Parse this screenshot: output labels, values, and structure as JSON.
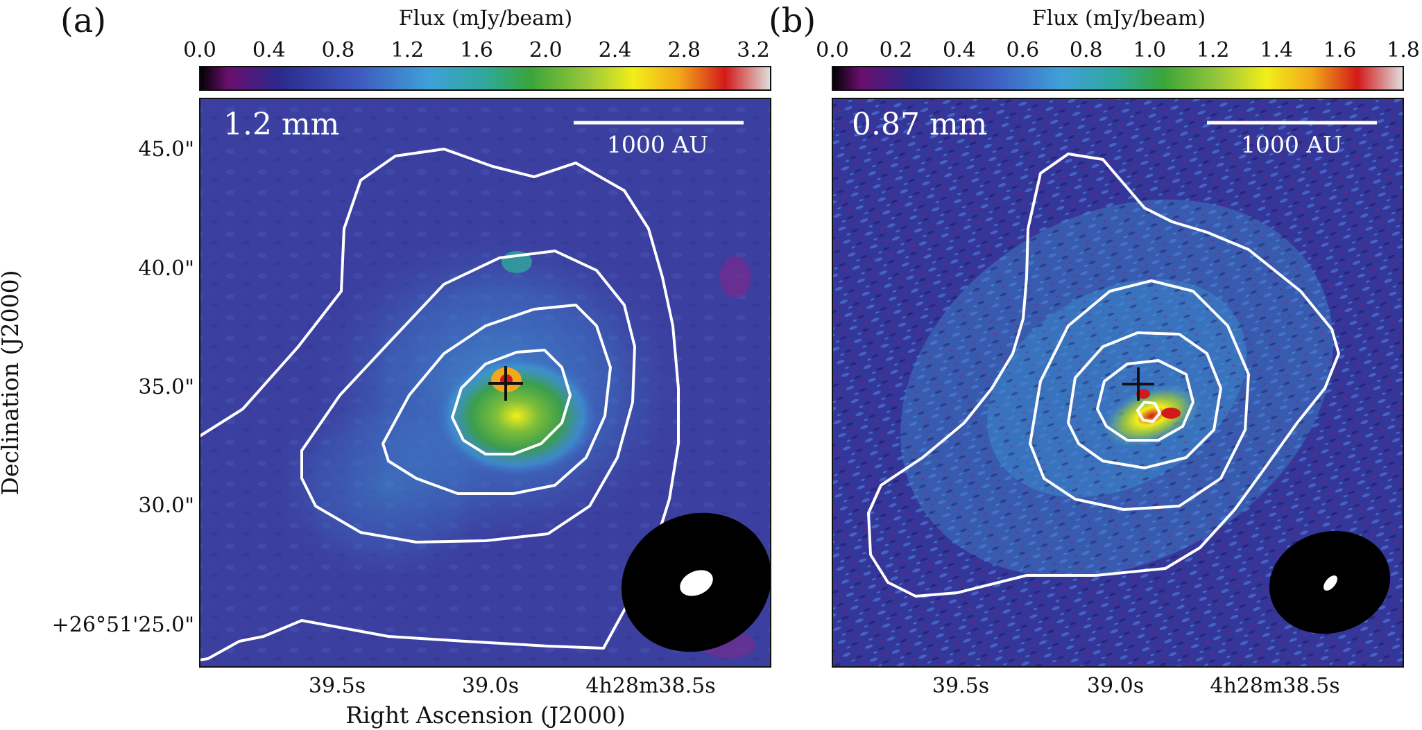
{
  "figure": "two-panel astronomical flux map",
  "colors": {
    "background": "#ffffff",
    "contour": "#ffffff",
    "map_base": "#3b3fa0",
    "colormap": [
      "#000000",
      "#6a0f6e",
      "#2b2a8c",
      "#3f5bbf",
      "#3fa0d8",
      "#2fa89a",
      "#3aa53a",
      "#9bc83a",
      "#f2ee1a",
      "#f2a81a",
      "#d21a1a",
      "#e0e0e0"
    ]
  },
  "shared_axes": {
    "xlabel": "Right Ascension (J2000)",
    "ylabel": "Declination (J2000)",
    "y_ticklabels": [
      "45.0\"",
      "40.0\"",
      "35.0\"",
      "30.0\"",
      "+26°51'25.0\""
    ],
    "x_ticklabels": [
      "39.5s",
      "39.0s",
      "4h28m38.5s"
    ]
  },
  "chart_data": [
    {
      "type": "heatmap",
      "panel_label": "(a)",
      "wavelength_label": "1.2 mm",
      "scalebar_label": "1000 AU",
      "colorbar": {
        "title": "Flux (mJy/beam)",
        "range": [
          0.0,
          3.3
        ],
        "ticks": [
          0.0,
          0.4,
          0.8,
          1.2,
          1.6,
          2.0,
          2.4,
          2.8,
          3.2
        ],
        "tick_labels": [
          "0.0",
          "0.4",
          "0.8",
          "1.2",
          "1.6",
          "2.0",
          "2.4",
          "2.8",
          "3.2"
        ]
      },
      "source_marker": "+",
      "contour_levels": 4,
      "beam": "synthesized beam (black ellipse) with inner white beam"
    },
    {
      "type": "heatmap",
      "panel_label": "(b)",
      "wavelength_label": "0.87 mm",
      "scalebar_label": "1000 AU",
      "colorbar": {
        "title": "Flux (mJy/beam)",
        "range": [
          0.0,
          1.8
        ],
        "ticks": [
          0.0,
          0.2,
          0.4,
          0.6,
          0.8,
          1.0,
          1.2,
          1.4,
          1.6,
          1.8
        ],
        "tick_labels": [
          "0.0",
          "0.2",
          "0.4",
          "0.6",
          "0.8",
          "1.0",
          "1.2",
          "1.4",
          "1.6",
          "1.8"
        ]
      },
      "source_marker": "+",
      "contour_levels": 5,
      "beam": "synthesized beam (black ellipse) with inner white beam"
    }
  ]
}
